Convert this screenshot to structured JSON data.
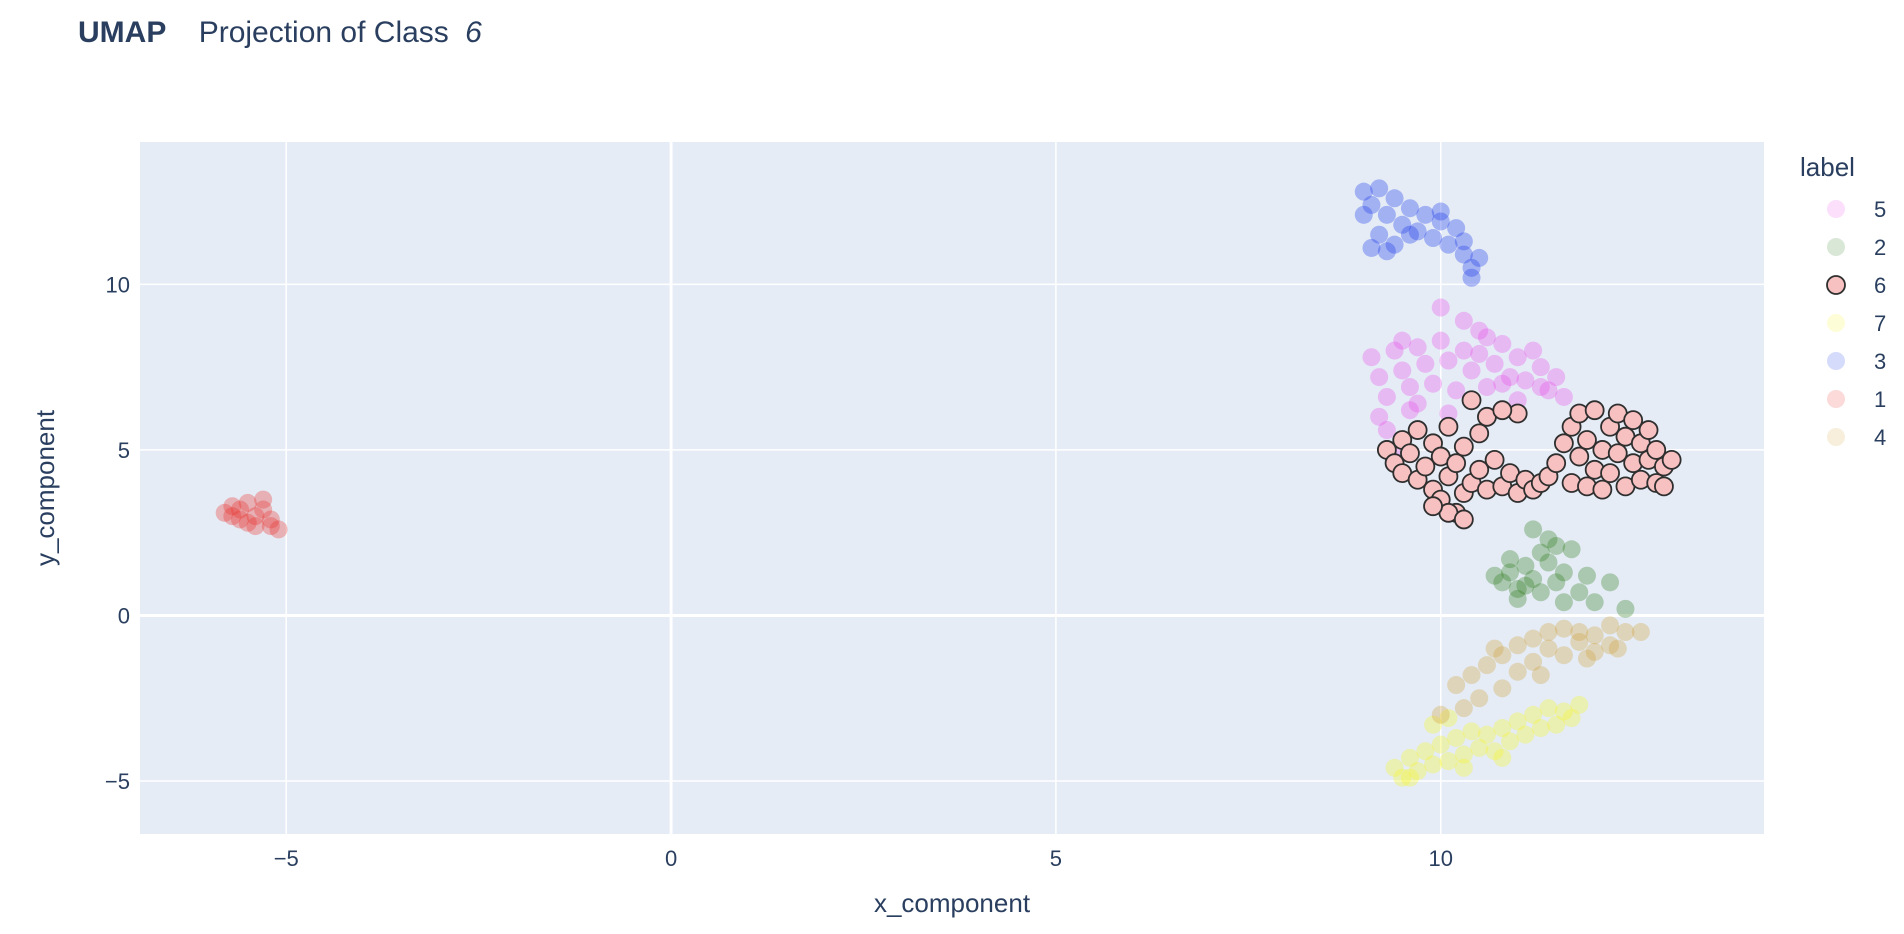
{
  "chart_data": {
    "type": "scatter",
    "title": {
      "bold": "UMAP",
      "text": "Projection of Class",
      "italic": "6"
    },
    "xlabel": "x_component",
    "ylabel": "y_component",
    "xlim": [
      -6.9,
      14.2
    ],
    "ylim": [
      -6.6,
      14.3
    ],
    "xticks": [
      -5,
      0,
      5,
      10
    ],
    "xtick_labels": [
      "−5",
      "0",
      "5",
      "10"
    ],
    "yticks": [
      -5,
      0,
      5,
      10
    ],
    "ytick_labels": [
      "−5",
      "0",
      "5",
      "10"
    ],
    "grid": true,
    "plot_bgcolor": "#e5ecf6",
    "gridcolor": "#ffffff",
    "highlighted_class": "6",
    "legend": {
      "title": "label",
      "placement": "right",
      "entries": [
        "5",
        "2",
        "6",
        "7",
        "3",
        "1",
        "4"
      ]
    },
    "series": [
      {
        "name": "5",
        "color": "#e94ee9",
        "opacity": 0.1,
        "points": [
          [
            9.1,
            7.8
          ],
          [
            9.2,
            7.2
          ],
          [
            9.3,
            6.6
          ],
          [
            9.4,
            8.0
          ],
          [
            9.5,
            7.4
          ],
          [
            9.6,
            6.9
          ],
          [
            9.7,
            8.1
          ],
          [
            9.8,
            7.6
          ],
          [
            9.9,
            7.0
          ],
          [
            10.0,
            8.3
          ],
          [
            10.1,
            7.7
          ],
          [
            10.2,
            6.8
          ],
          [
            10.3,
            8.0
          ],
          [
            10.4,
            7.4
          ],
          [
            10.5,
            7.9
          ],
          [
            10.6,
            6.9
          ],
          [
            10.7,
            7.6
          ],
          [
            10.8,
            8.2
          ],
          [
            10.9,
            7.2
          ],
          [
            11.0,
            7.8
          ],
          [
            11.1,
            7.1
          ],
          [
            11.2,
            8.0
          ],
          [
            11.3,
            7.5
          ],
          [
            11.4,
            6.8
          ],
          [
            11.5,
            7.2
          ],
          [
            11.6,
            6.6
          ],
          [
            9.3,
            5.6
          ],
          [
            9.4,
            5.0
          ],
          [
            9.2,
            6.0
          ],
          [
            9.6,
            6.2
          ],
          [
            10.0,
            9.3
          ],
          [
            10.3,
            8.9
          ],
          [
            10.5,
            8.6
          ],
          [
            10.8,
            7.0
          ],
          [
            11.0,
            6.5
          ],
          [
            9.5,
            8.3
          ],
          [
            9.7,
            6.4
          ],
          [
            10.1,
            6.1
          ],
          [
            10.6,
            8.4
          ],
          [
            11.3,
            6.9
          ]
        ]
      },
      {
        "name": "2",
        "color": "#2e7d1c",
        "opacity": 0.1,
        "points": [
          [
            10.8,
            1.0
          ],
          [
            10.9,
            1.3
          ],
          [
            11.0,
            0.8
          ],
          [
            11.1,
            1.5
          ],
          [
            11.2,
            1.1
          ],
          [
            11.3,
            0.7
          ],
          [
            11.4,
            1.6
          ],
          [
            11.5,
            1.0
          ],
          [
            11.6,
            1.3
          ],
          [
            11.7,
            2.0
          ],
          [
            11.5,
            2.1
          ],
          [
            11.2,
            2.6
          ],
          [
            11.3,
            1.9
          ],
          [
            10.9,
            1.7
          ],
          [
            11.0,
            0.5
          ],
          [
            11.8,
            0.7
          ],
          [
            12.0,
            0.4
          ],
          [
            12.2,
            1.0
          ],
          [
            12.4,
            0.2
          ],
          [
            11.6,
            0.4
          ],
          [
            10.7,
            1.2
          ],
          [
            11.4,
            2.3
          ],
          [
            11.9,
            1.2
          ],
          [
            11.1,
            0.9
          ]
        ]
      },
      {
        "name": "6",
        "color": "#f7c1c1",
        "opacity": 1.0,
        "points": [
          [
            9.3,
            5.0
          ],
          [
            9.4,
            4.6
          ],
          [
            9.5,
            4.3
          ],
          [
            9.5,
            5.3
          ],
          [
            9.6,
            4.9
          ],
          [
            9.7,
            4.1
          ],
          [
            9.7,
            5.6
          ],
          [
            9.8,
            4.5
          ],
          [
            9.9,
            3.8
          ],
          [
            9.9,
            5.2
          ],
          [
            10.0,
            4.8
          ],
          [
            10.0,
            3.5
          ],
          [
            10.1,
            4.2
          ],
          [
            10.1,
            5.7
          ],
          [
            10.2,
            3.1
          ],
          [
            10.2,
            4.6
          ],
          [
            10.3,
            3.7
          ],
          [
            10.3,
            5.1
          ],
          [
            10.4,
            4.0
          ],
          [
            10.4,
            6.5
          ],
          [
            10.5,
            4.4
          ],
          [
            10.5,
            5.5
          ],
          [
            10.6,
            3.8
          ],
          [
            10.6,
            6.0
          ],
          [
            10.7,
            4.7
          ],
          [
            10.8,
            3.9
          ],
          [
            10.9,
            4.3
          ],
          [
            11.0,
            3.7
          ],
          [
            11.1,
            4.1
          ],
          [
            11.2,
            3.8
          ],
          [
            11.3,
            4.0
          ],
          [
            11.4,
            4.2
          ],
          [
            11.0,
            6.1
          ],
          [
            10.8,
            6.2
          ],
          [
            11.5,
            4.6
          ],
          [
            11.6,
            5.2
          ],
          [
            11.7,
            4.0
          ],
          [
            11.7,
            5.7
          ],
          [
            11.8,
            4.8
          ],
          [
            11.8,
            6.1
          ],
          [
            11.9,
            3.9
          ],
          [
            11.9,
            5.3
          ],
          [
            12.0,
            4.4
          ],
          [
            12.0,
            6.2
          ],
          [
            12.1,
            5.0
          ],
          [
            12.1,
            3.8
          ],
          [
            12.2,
            5.7
          ],
          [
            12.2,
            4.3
          ],
          [
            12.3,
            4.9
          ],
          [
            12.3,
            6.1
          ],
          [
            12.4,
            3.9
          ],
          [
            12.4,
            5.4
          ],
          [
            12.5,
            4.6
          ],
          [
            12.5,
            5.9
          ],
          [
            12.6,
            4.1
          ],
          [
            12.6,
            5.2
          ],
          [
            12.7,
            4.7
          ],
          [
            12.7,
            5.6
          ],
          [
            12.8,
            4.0
          ],
          [
            12.8,
            5.0
          ],
          [
            12.9,
            4.5
          ],
          [
            13.0,
            4.7
          ],
          [
            12.9,
            3.9
          ],
          [
            10.1,
            3.1
          ],
          [
            10.3,
            2.9
          ],
          [
            9.9,
            3.3
          ]
        ]
      },
      {
        "name": "7",
        "color": "#f5f522",
        "opacity": 0.1,
        "points": [
          [
            9.4,
            -4.6
          ],
          [
            9.5,
            -4.9
          ],
          [
            9.6,
            -4.3
          ],
          [
            9.7,
            -4.7
          ],
          [
            9.8,
            -4.1
          ],
          [
            9.9,
            -4.5
          ],
          [
            10.0,
            -3.9
          ],
          [
            10.1,
            -4.4
          ],
          [
            10.2,
            -3.7
          ],
          [
            10.3,
            -4.2
          ],
          [
            10.4,
            -3.5
          ],
          [
            10.5,
            -4.0
          ],
          [
            10.6,
            -3.6
          ],
          [
            10.7,
            -4.1
          ],
          [
            10.8,
            -3.4
          ],
          [
            10.9,
            -3.8
          ],
          [
            11.0,
            -3.2
          ],
          [
            11.1,
            -3.6
          ],
          [
            11.2,
            -3.0
          ],
          [
            11.3,
            -3.4
          ],
          [
            11.4,
            -2.8
          ],
          [
            11.5,
            -3.3
          ],
          [
            11.6,
            -2.9
          ],
          [
            11.7,
            -3.1
          ],
          [
            11.8,
            -2.7
          ],
          [
            9.9,
            -3.3
          ],
          [
            10.1,
            -3.1
          ],
          [
            9.6,
            -4.9
          ],
          [
            10.3,
            -4.6
          ],
          [
            10.8,
            -4.3
          ]
        ]
      },
      {
        "name": "3",
        "color": "#1535e8",
        "opacity": 0.1,
        "points": [
          [
            9.0,
            12.8
          ],
          [
            9.1,
            12.4
          ],
          [
            9.2,
            12.9
          ],
          [
            9.3,
            12.1
          ],
          [
            9.4,
            12.6
          ],
          [
            9.5,
            11.8
          ],
          [
            9.6,
            12.3
          ],
          [
            9.7,
            11.6
          ],
          [
            9.8,
            12.1
          ],
          [
            9.9,
            11.4
          ],
          [
            10.0,
            11.9
          ],
          [
            10.1,
            11.2
          ],
          [
            10.2,
            11.7
          ],
          [
            10.3,
            10.9
          ],
          [
            10.3,
            11.3
          ],
          [
            10.4,
            10.5
          ],
          [
            10.4,
            10.2
          ],
          [
            9.2,
            11.5
          ],
          [
            9.4,
            11.2
          ],
          [
            9.6,
            11.5
          ],
          [
            10.0,
            12.2
          ],
          [
            9.1,
            11.1
          ],
          [
            9.3,
            11.0
          ],
          [
            10.5,
            10.8
          ],
          [
            9.0,
            12.1
          ]
        ]
      },
      {
        "name": "1",
        "color": "#e8322a",
        "opacity": 0.1,
        "points": [
          [
            -5.8,
            3.1
          ],
          [
            -5.7,
            3.3
          ],
          [
            -5.6,
            2.9
          ],
          [
            -5.5,
            3.4
          ],
          [
            -5.4,
            3.0
          ],
          [
            -5.3,
            3.5
          ],
          [
            -5.4,
            2.7
          ],
          [
            -5.2,
            2.9
          ],
          [
            -5.1,
            2.6
          ],
          [
            -5.6,
            3.2
          ],
          [
            -5.5,
            2.8
          ],
          [
            -5.3,
            3.2
          ],
          [
            -5.7,
            3.0
          ],
          [
            -5.2,
            2.7
          ]
        ]
      },
      {
        "name": "4",
        "color": "#d1a23c",
        "opacity": 0.1,
        "points": [
          [
            10.2,
            -2.1
          ],
          [
            10.4,
            -1.8
          ],
          [
            10.6,
            -1.5
          ],
          [
            10.8,
            -1.2
          ],
          [
            11.0,
            -0.9
          ],
          [
            11.2,
            -0.7
          ],
          [
            11.4,
            -0.5
          ],
          [
            11.6,
            -0.4
          ],
          [
            11.8,
            -0.5
          ],
          [
            12.0,
            -0.6
          ],
          [
            12.2,
            -0.3
          ],
          [
            12.4,
            -0.5
          ],
          [
            12.6,
            -0.5
          ],
          [
            10.8,
            -2.2
          ],
          [
            11.0,
            -1.7
          ],
          [
            11.2,
            -1.4
          ],
          [
            11.4,
            -1.0
          ],
          [
            11.6,
            -1.2
          ],
          [
            11.8,
            -0.8
          ],
          [
            12.0,
            -1.1
          ],
          [
            12.2,
            -0.9
          ],
          [
            10.5,
            -2.5
          ],
          [
            10.3,
            -2.8
          ],
          [
            10.0,
            -3.0
          ],
          [
            10.7,
            -1.0
          ],
          [
            11.3,
            -1.8
          ],
          [
            11.9,
            -1.3
          ],
          [
            12.3,
            -1.0
          ]
        ]
      }
    ]
  }
}
